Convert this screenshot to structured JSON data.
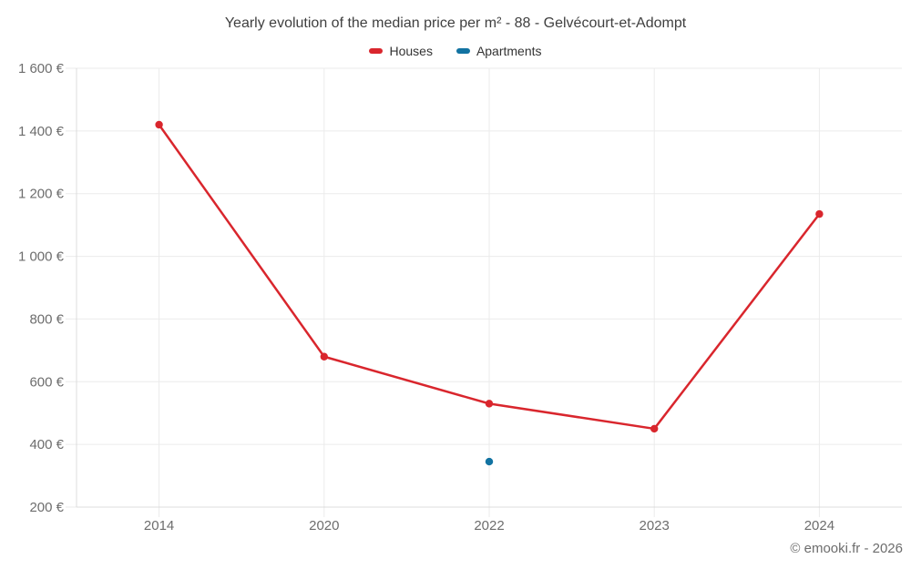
{
  "chart_data": {
    "type": "line",
    "title": "Yearly evolution of the median price per m² - 88 - Gelvécourt-et-Adompt",
    "categories": [
      "2014",
      "2020",
      "2022",
      "2023",
      "2024"
    ],
    "series": [
      {
        "name": "Houses",
        "color": "#d9262d",
        "values": [
          1420,
          680,
          530,
          450,
          1135
        ]
      },
      {
        "name": "Apartments",
        "color": "#1273a2",
        "values": [
          null,
          null,
          345,
          null,
          null
        ]
      }
    ],
    "xlabel": "",
    "ylabel": "",
    "ylim": [
      200,
      1600
    ],
    "ytick_step": 200,
    "ytick_suffix": "€",
    "grid": true,
    "legend_position": "top",
    "credit": "© emooki.fr - 2026"
  }
}
